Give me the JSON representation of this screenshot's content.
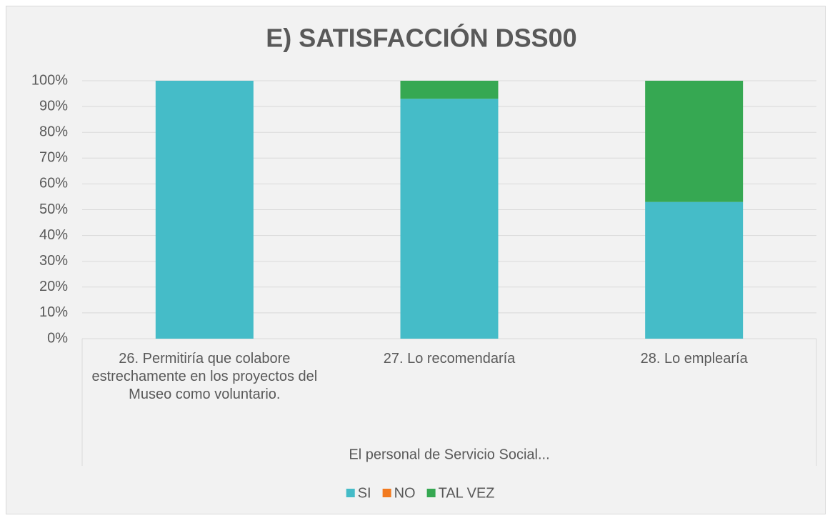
{
  "chart_data": {
    "type": "stacked_bar",
    "title": "E) SATISFACCIÓN  DSS00",
    "categories": [
      "26. Permitiría que colabore estrechamente en los proyectos del Museo como voluntario.",
      "27. Lo recomendaría",
      "28. Lo emplearía"
    ],
    "category_group": "El personal de Servicio Social...",
    "series": [
      {
        "name": "SI",
        "color": "#45bcc8",
        "values": [
          100,
          93,
          53
        ]
      },
      {
        "name": "NO",
        "color": "#f27a1f",
        "values": [
          0,
          0,
          0
        ]
      },
      {
        "name": "TAL VEZ",
        "color": "#36a852",
        "values": [
          0,
          7,
          47
        ]
      }
    ],
    "ylim": [
      0,
      100
    ],
    "yticks": [
      {
        "value": 0,
        "label": "0%"
      },
      {
        "value": 10,
        "label": "10%"
      },
      {
        "value": 20,
        "label": "20%"
      },
      {
        "value": 30,
        "label": "30%"
      },
      {
        "value": 40,
        "label": "40%"
      },
      {
        "value": 50,
        "label": "50%"
      },
      {
        "value": 60,
        "label": "60%"
      },
      {
        "value": 70,
        "label": "70%"
      },
      {
        "value": 80,
        "label": "80%"
      },
      {
        "value": 90,
        "label": "90%"
      },
      {
        "value": 100,
        "label": "100%"
      }
    ],
    "grid": true,
    "legend": "bottom"
  }
}
